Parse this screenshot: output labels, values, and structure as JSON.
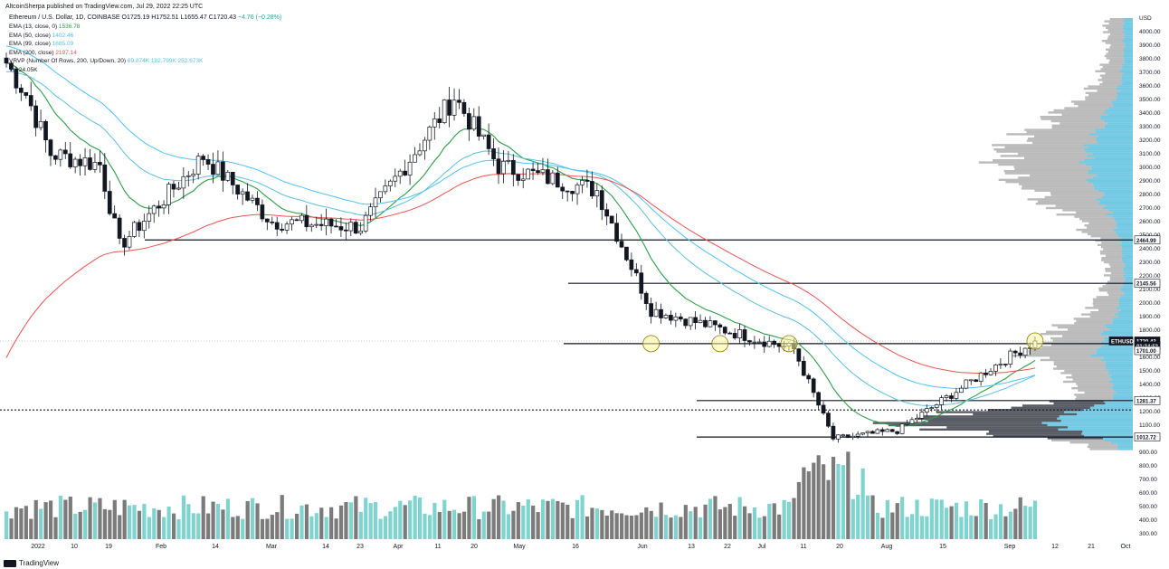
{
  "publisher": "AltcoinSherpa published on TradingView.com, Jul 29, 2022 22:25 UTC",
  "symbol_line": "Ethereum / U.S. Dollar, 1D, COINBASE",
  "ohlc": {
    "o": "O1725.19",
    "h": "H1752.51",
    "l": "L1655.47",
    "c": "C1720.43",
    "chg": "−4.76 (−0.28%)"
  },
  "indicators": [
    {
      "label": "EMA (13, close, 0)",
      "value": "1536.78",
      "color": "#2e9e4a"
    },
    {
      "label": "EMA (50, close)",
      "value": "1402.46",
      "color": "#4fc3f7"
    },
    {
      "label": "EMA (99, close)",
      "value": "1685.09",
      "color": "#4fc3f7"
    },
    {
      "label": "EMA (200, close)",
      "value": "2197.14",
      "color": "#ef5350"
    },
    {
      "label": "VRVP (Number Of Rows, 200, Up/Down, 20)",
      "value": "69.874K  182.799K  252.673K",
      "color": "#5bc0de"
    },
    {
      "label": "Vol",
      "value": "24.05K",
      "color": "#131722"
    }
  ],
  "footer": "TradingView",
  "price_axis": {
    "currency": "USD",
    "ticks": [
      4000,
      3900,
      3800,
      3700,
      3600,
      3500,
      3400,
      3300,
      3200,
      3100,
      3000,
      2900,
      2800,
      2700,
      2600,
      2500,
      2400,
      2300,
      2200,
      2100,
      2000,
      1900,
      1800,
      1700,
      1600,
      1500,
      1400,
      1300,
      1200,
      1100,
      1000,
      900,
      800,
      700,
      600,
      500,
      400,
      300,
      200
    ]
  },
  "price_labels": [
    {
      "value": "2464.99",
      "price": 2464.99
    },
    {
      "value": "2145.56",
      "price": 2145.56
    },
    {
      "value": "ETHUSD",
      "price": 1720.43,
      "dark": true
    },
    {
      "value": "1720.43",
      "price": 1720.43,
      "dark": true
    },
    {
      "value": "01:34:53",
      "price": 1685,
      "dark": true
    },
    {
      "value": "1701.00",
      "price": 1650
    },
    {
      "value": "1281.37",
      "price": 1281.37
    },
    {
      "value": "1012.72",
      "price": 1012.72
    }
  ],
  "time_axis": [
    "2022",
    "10",
    "19",
    "Feb",
    "14",
    "Mar",
    "14",
    "23",
    "Apr",
    "11",
    "20",
    "May",
    "16",
    "Jun",
    "13",
    "22",
    "Jul",
    "11",
    "20",
    "Aug",
    "15",
    "Sep",
    "12",
    "21",
    "Oct"
  ],
  "colors": {
    "up": "#ffffff",
    "down": "#131722",
    "ema13": "#2e9e4a",
    "ema50": "#5bc0de",
    "ema99": "#4fc3f7",
    "ema200": "#ef5350",
    "vol_up": "#80d4d0",
    "vol_down": "#7b7b7b",
    "profile": "#5bc0de",
    "profile_down": "#9e9e9e"
  },
  "chart_data": {
    "type": "candlestick",
    "title": "Ethereum / U.S. Dollar, 1D, COINBASE",
    "horizontal_levels": [
      2464.99,
      2145.56,
      1701.0,
      1281.37,
      1212,
      1012.72
    ],
    "highlighted_touches": [
      {
        "date": "2022-05-12",
        "price": 1701
      },
      {
        "date": "2022-05-26",
        "price": 1701
      },
      {
        "date": "2022-06-09",
        "price": 1701
      },
      {
        "date": "2022-07-29",
        "price": 1720
      }
    ],
    "closes_key": [
      {
        "date": "2022-01-01",
        "close": 3770
      },
      {
        "date": "2022-01-05",
        "close": 3540
      },
      {
        "date": "2022-01-10",
        "close": 3100
      },
      {
        "date": "2022-01-20",
        "close": 3020
      },
      {
        "date": "2022-01-24",
        "close": 2420
      },
      {
        "date": "2022-02-10",
        "close": 3080
      },
      {
        "date": "2022-02-24",
        "close": 2600
      },
      {
        "date": "2022-03-14",
        "close": 2560
      },
      {
        "date": "2022-04-02",
        "close": 3520
      },
      {
        "date": "2022-04-11",
        "close": 3010
      },
      {
        "date": "2022-05-01",
        "close": 2830
      },
      {
        "date": "2022-05-12",
        "close": 1950
      },
      {
        "date": "2022-06-10",
        "close": 1660
      },
      {
        "date": "2022-06-18",
        "close": 1000
      },
      {
        "date": "2022-07-01",
        "close": 1060
      },
      {
        "date": "2022-07-20",
        "close": 1520
      },
      {
        "date": "2022-07-29",
        "close": 1720.43
      }
    ],
    "volume_axis_max": 900
  }
}
